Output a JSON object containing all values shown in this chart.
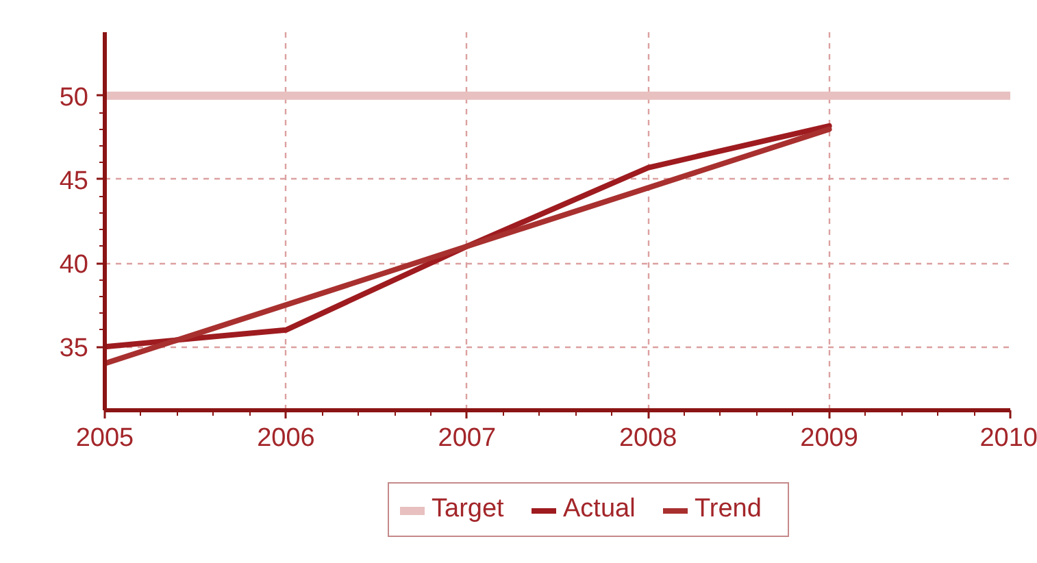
{
  "chart_data": {
    "type": "line",
    "x": [
      2005,
      2006,
      2007,
      2008,
      2009
    ],
    "xlim": [
      2005,
      2010
    ],
    "xticks": [
      2005,
      2006,
      2007,
      2008,
      2009,
      2010
    ],
    "ylim": [
      31.2,
      53.8
    ],
    "yticks": [
      35,
      40,
      45,
      50
    ],
    "grid": true,
    "legend": "bottom",
    "line_style": "solid",
    "series": [
      {
        "name": "Target",
        "color": "#e8c0c0",
        "x": [
          2005,
          2010
        ],
        "values": [
          50,
          50
        ]
      },
      {
        "name": "Actual",
        "color": "#9e1b1f",
        "values": [
          35,
          36,
          41,
          45.7,
          48.2
        ]
      },
      {
        "name": "Trend",
        "color": "#a8302f",
        "x": [
          2005,
          2009
        ],
        "values": [
          34,
          48
        ]
      }
    ]
  }
}
